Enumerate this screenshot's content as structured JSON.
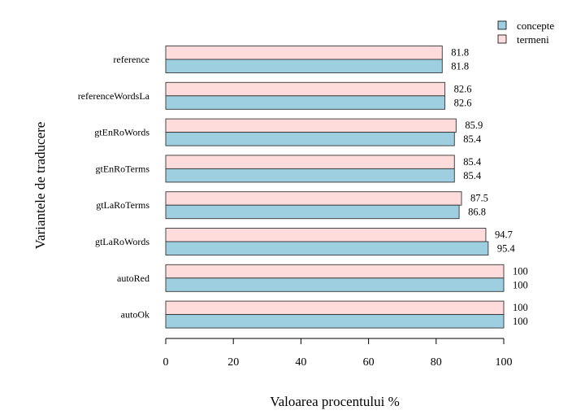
{
  "chart_data": {
    "type": "bar",
    "orientation": "horizontal",
    "title": "",
    "xlabel": "Valoarea procentului %",
    "ylabel": "Variantele de traducere",
    "xlim": [
      0,
      100
    ],
    "xticks": [
      0,
      20,
      40,
      60,
      80,
      100
    ],
    "categories": [
      "reference",
      "referenceWordsLa",
      "gtEnRoWords",
      "gtEnRoTerms",
      "gtLaRoTerms",
      "gtLaRoWords",
      "autoRed",
      "autoOk"
    ],
    "series": [
      {
        "name": "concepte",
        "color": "#9ecfe0",
        "values": [
          81.8,
          82.6,
          85.4,
          85.4,
          86.8,
          95.4,
          100,
          100
        ],
        "labels": [
          "81.8",
          "82.6",
          "85.4",
          "85.4",
          "86.8",
          "95.4",
          "100",
          "100"
        ]
      },
      {
        "name": "termeni",
        "color": "#ffdcdc",
        "values": [
          81.8,
          82.6,
          85.9,
          85.4,
          87.5,
          94.7,
          100,
          100
        ],
        "labels": [
          "81.8",
          "82.6",
          "85.9",
          "85.4",
          "87.5",
          "94.7",
          "100",
          "100"
        ]
      }
    ],
    "legend_position": "top-right",
    "grid": false
  }
}
